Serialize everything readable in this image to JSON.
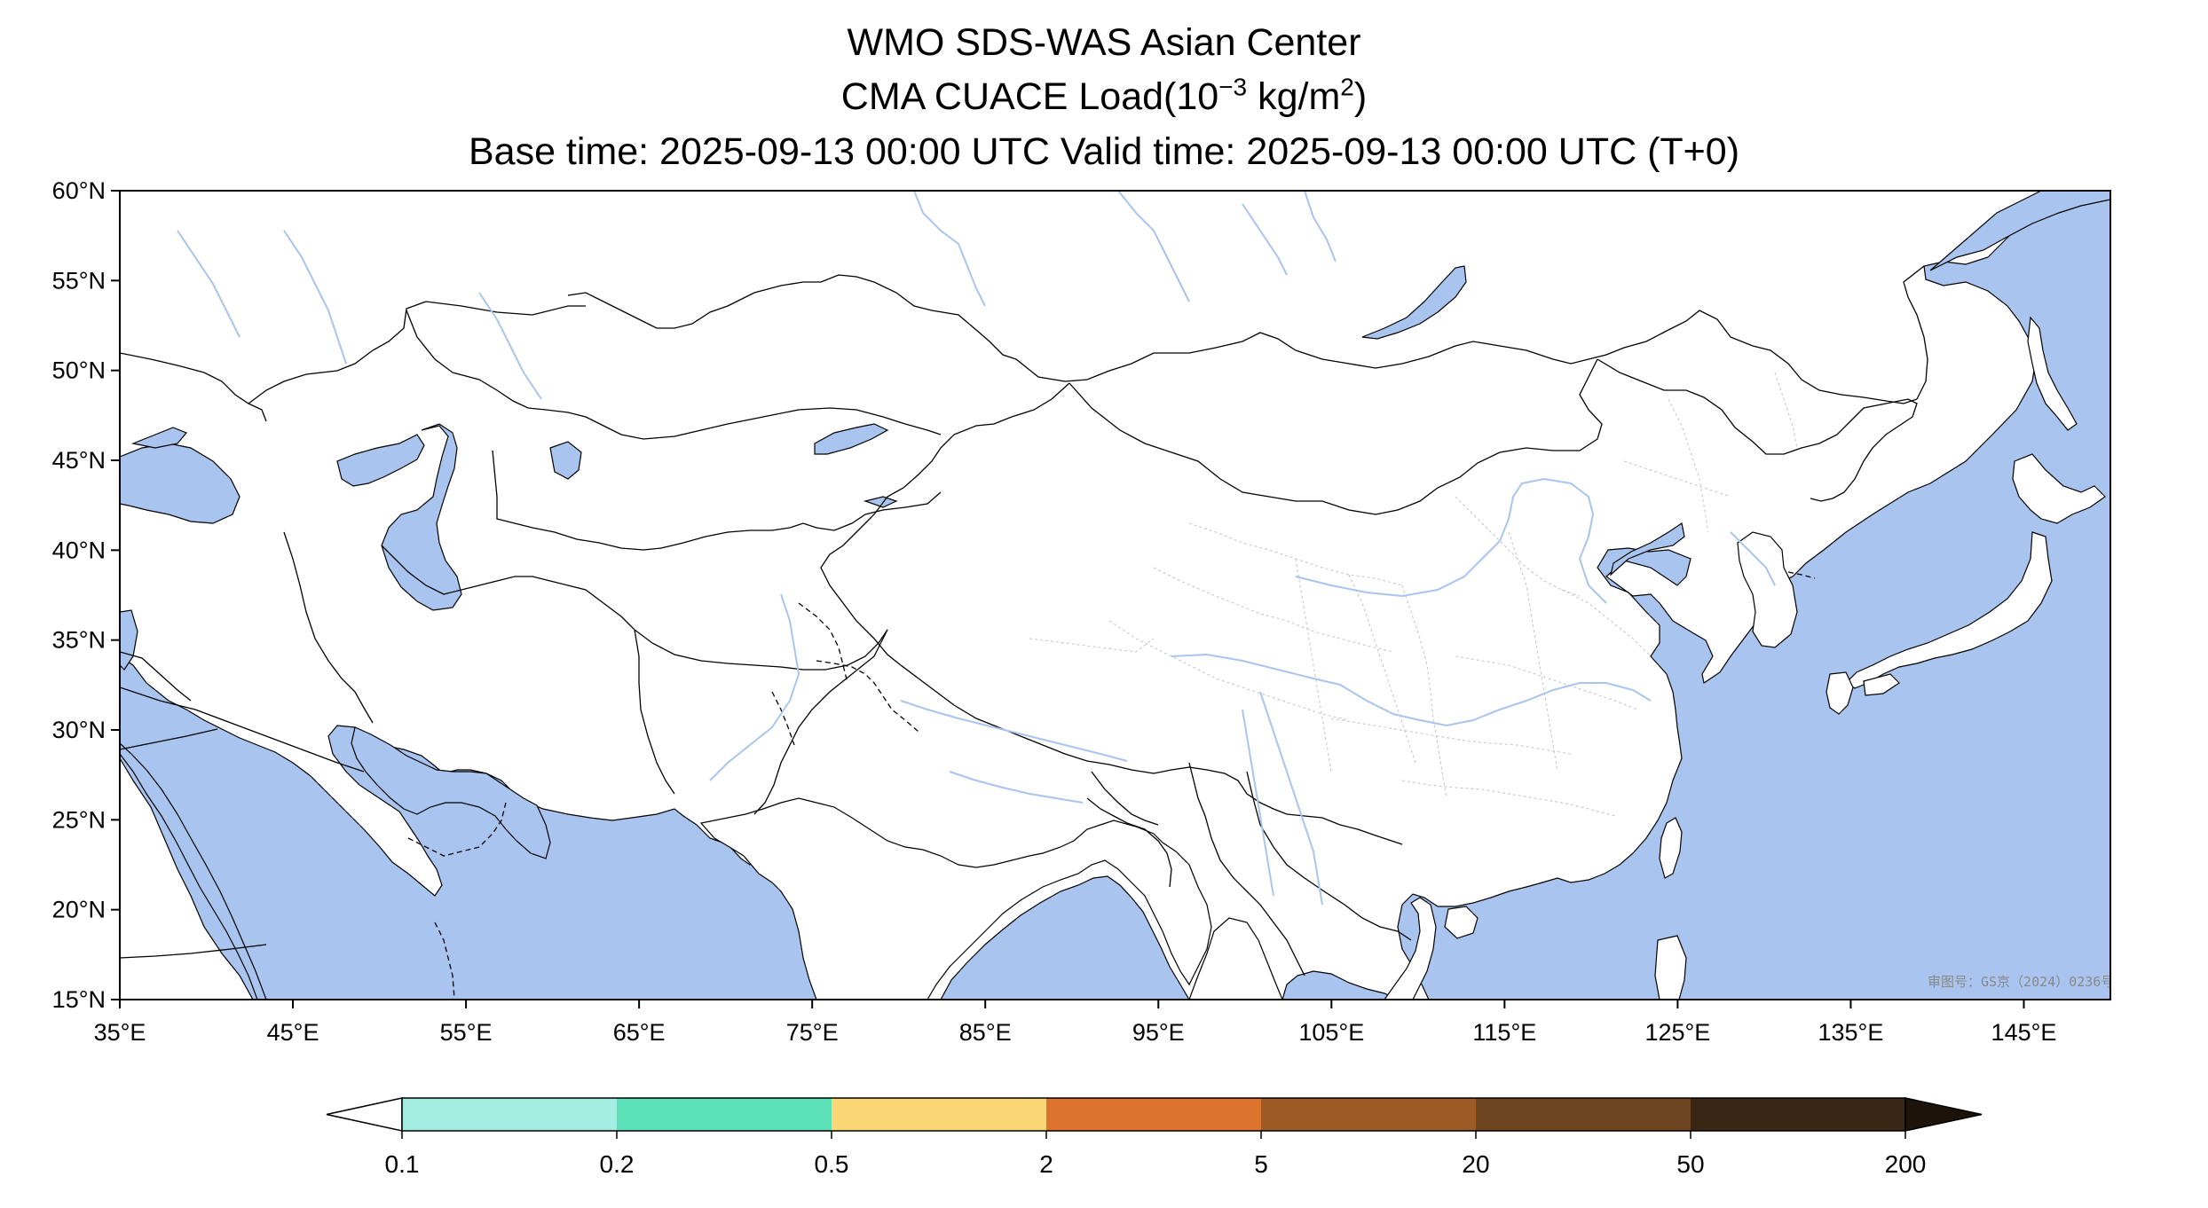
{
  "title": {
    "line1": "WMO SDS-WAS Asian Center",
    "line2_prefix": "CMA CUACE Load(10",
    "line2_exp": "−3",
    "line2_mid": " kg/m",
    "line2_exp2": "2",
    "line2_suffix": ")",
    "line3": "Base time: 2025-09-13 00:00 UTC Valid time: 2025-09-13 00:00 UTC (T+0)"
  },
  "map": {
    "lon_ticks": [
      "35°E",
      "45°E",
      "55°E",
      "65°E",
      "75°E",
      "85°E",
      "95°E",
      "105°E",
      "115°E",
      "125°E",
      "135°E",
      "145°E"
    ],
    "lat_ticks": [
      "60°N",
      "55°N",
      "50°N",
      "45°N",
      "40°N",
      "35°N",
      "30°N",
      "25°N",
      "20°N",
      "15°N"
    ],
    "extent": {
      "lon": [
        35,
        150
      ],
      "lat": [
        15,
        60
      ]
    },
    "watermark": "审图号：GS京（2024）0236号",
    "colors": {
      "ocean": "#a9c4ee",
      "land": "#ffffff",
      "border": "#000000",
      "river": "#a9c4ee",
      "province": "#c8c8c8"
    }
  },
  "colorbar": {
    "labels": [
      "0.1",
      "0.2",
      "0.5",
      "2",
      "5",
      "20",
      "50",
      "200"
    ],
    "colors": [
      "#ffffff",
      "#a2ece0",
      "#5ce0b8",
      "#fad674",
      "#dc732f",
      "#9c5b24",
      "#6d4520",
      "#3b2715",
      "#1e130a"
    ]
  }
}
